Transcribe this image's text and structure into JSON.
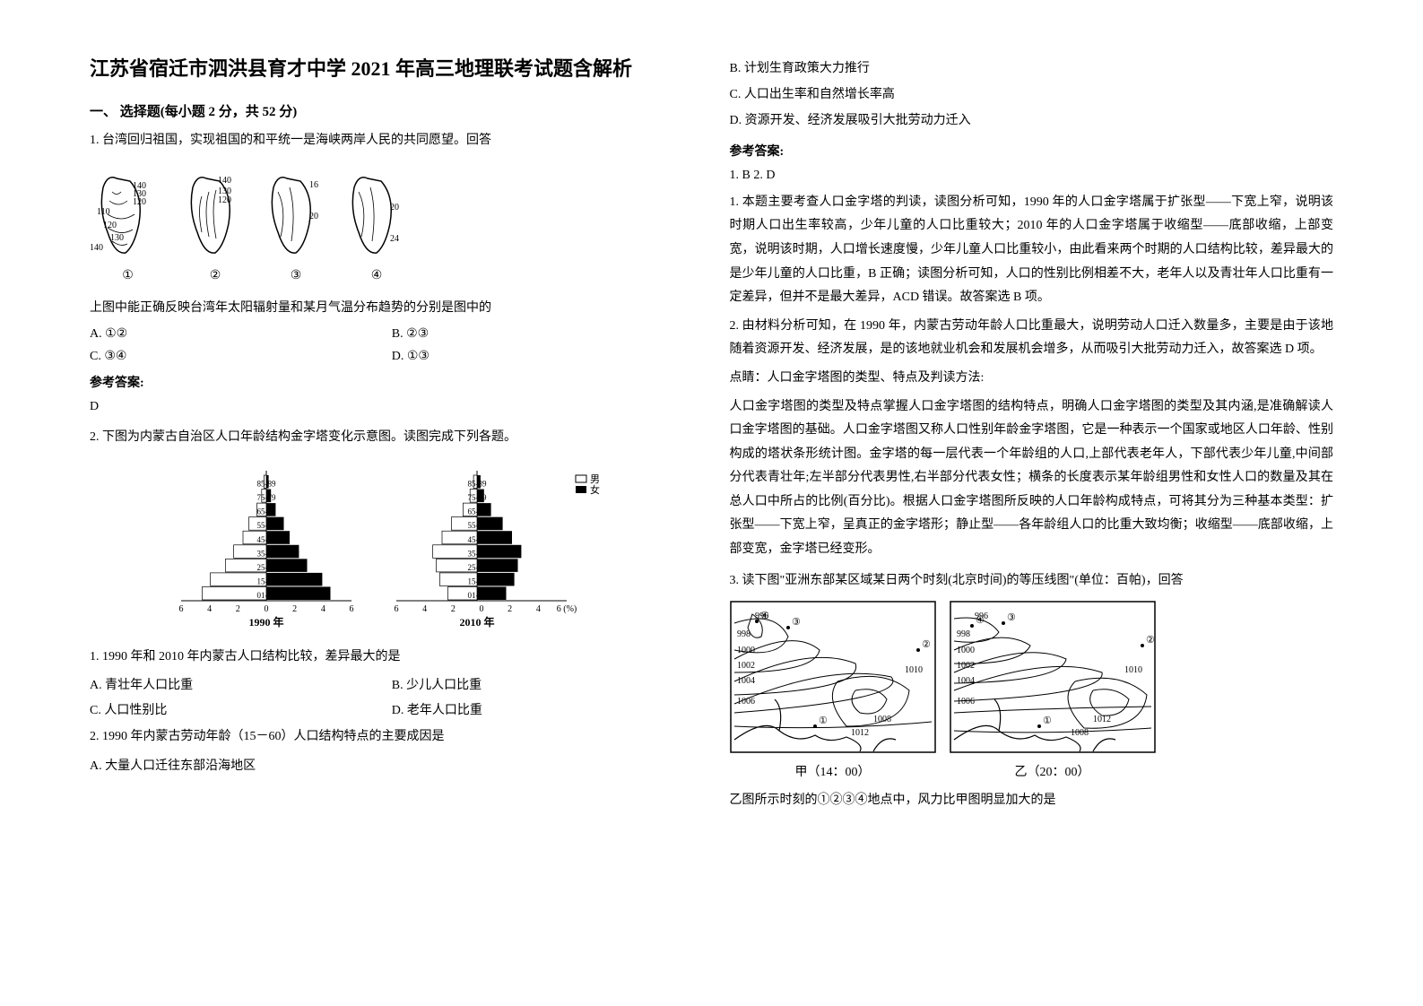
{
  "title": "江苏省宿迁市泗洪县育才中学 2021 年高三地理联考试题含解析",
  "section1_header": "一、 选择题(每小题 2 分，共 52 分)",
  "q1": {
    "stem": "1. 台湾回归祖国，实现祖国的和平统一是海峡两岸人民的共同愿望。回答",
    "taiwan_labels": [
      {
        "circle": "①",
        "vals": [
          "140",
          "130",
          "120",
          "110",
          "120",
          "130",
          "140"
        ]
      },
      {
        "circle": "②",
        "vals": [
          "140",
          "130",
          "120"
        ]
      },
      {
        "circle": "③",
        "vals": [
          "16",
          "20"
        ]
      },
      {
        "circle": "④",
        "vals": [
          "20",
          "24"
        ]
      }
    ],
    "sub": "上图中能正确反映台湾年太阳辐射量和某月气温分布趋势的分别是图中的",
    "opts": {
      "a": "A. ①②",
      "b": "B. ②③",
      "c": "C. ③④",
      "d": "D. ①③"
    }
  },
  "answer_label": "参考答案:",
  "q1_answer": "D",
  "q2": {
    "stem": "2. 下图为内蒙古自治区人口年龄结构金字塔变化示意图。读图完成下列各题。",
    "pyramid": {
      "age_labels": [
        "85-89",
        "75-79",
        "65-69",
        "55-59",
        "45-49",
        "35-39",
        "25-29",
        "15-19",
        "01-09"
      ],
      "x_ticks_left": [
        "6",
        "4",
        "2",
        "0",
        "2",
        "4",
        "6"
      ],
      "x_ticks_right": [
        "6",
        "4",
        "2",
        "0",
        "2",
        "4",
        "6 (%)"
      ],
      "year_left": "1990 年",
      "year_right": "2010 年",
      "legend": {
        "male": "男",
        "female": "女"
      },
      "left_bars": [
        0.2,
        0.4,
        0.8,
        1.5,
        2.0,
        2.8,
        3.5,
        4.8,
        5.5
      ],
      "right_bars": [
        0.3,
        0.6,
        1.2,
        2.2,
        3.0,
        3.8,
        3.5,
        3.2,
        2.5
      ]
    },
    "sub1": "1. 1990 年和 2010 年内蒙古人口结构比较，差异最大的是",
    "sub1_opts": {
      "a": "A. 青壮年人口比重",
      "b": "B. 少儿人口比重",
      "c": "C. 人口性别比",
      "d": "D. 老年人口比重"
    },
    "sub2": "2. 1990 年内蒙古劳动年龄（15－60）人口结构特点的主要成因是",
    "sub2_opts": {
      "a": "A. 大量人口迁往东部沿海地区",
      "b": "B. 计划生育政策大力推行",
      "c": "C. 人口出生率和自然增长率高",
      "d": "D. 资源开发、经济发展吸引大批劳动力迁入"
    }
  },
  "q2_answer": "1. B        2. D",
  "q2_explain1": "1. 本题主要考查人口金字塔的判读，读图分析可知，1990 年的人口金字塔属于扩张型——下宽上窄，说明该时期人口出生率较高，少年儿童的人口比重较大；2010 年的人口金字塔属于收缩型——底部收缩，上部变宽，说明该时期，人口增长速度慢，少年儿童人口比重较小，由此看来两个时期的人口结构比较，差异最大的是少年儿童的人口比重，B 正确；读图分析可知，人口的性别比例相差不大，老年人以及青壮年人口比重有一定差异，但并不是最大差异，ACD 错误。故答案选 B 项。",
  "q2_explain2": "2. 由材料分析可知，在 1990 年，内蒙古劳动年龄人口比重最大，说明劳动人口迁入数量多，主要是由于该地随着资源开发、经济发展，是的该地就业机会和发展机会增多，从而吸引大批劳动力迁入，故答案选 D 项。",
  "q2_note_label": "点睛：人口金字塔图的类型、特点及判读方法:",
  "q2_note": "人口金字塔图的类型及特点掌握人口金字塔图的结构特点，明确人口金字塔图的类型及其内涵,是准确解读人口金字塔图的基础。人口金字塔图又称人口性别年龄金字塔图，它是一种表示一个国家或地区人口年龄、性别构成的塔状条形统计图。金字塔的每一层代表一个年龄组的人口,上部代表老年人，下部代表少年儿童,中间部分代表青壮年;左半部分代表男性,右半部分代表女性；横条的长度表示某年龄组男性和女性人口的数量及其在总人口中所占的比例(百分比)。根据人口金字塔图所反映的人口年龄构成特点，可将其分为三种基本类型：扩张型——下宽上窄，呈真正的金字塔形；静止型——各年龄组人口的比重大致均衡；收缩型——底部收缩，上部变宽，金字塔已经变形。",
  "q3": {
    "stem": "3. 读下图\"亚洲东部某区域某日两个时刻(北京时间)的等压线图\"(单位：百帕)，回答",
    "isobar_left": {
      "vals": [
        "996",
        "998",
        "1000",
        "1002",
        "1004",
        "1006",
        "1012",
        "1010",
        "1008"
      ],
      "marks": [
        "③",
        "④",
        "①",
        "②"
      ]
    },
    "isobar_right": {
      "vals": [
        "996",
        "998",
        "1000",
        "1002",
        "1004",
        "1006",
        "1008",
        "1010",
        "1012"
      ],
      "marks": [
        "③",
        "④",
        "①",
        "②"
      ]
    },
    "caption_left": "甲（14：00）",
    "caption_right": "乙（20：00）",
    "sub": "乙图所示时刻的①②③④地点中，风力比甲图明显加大的是"
  }
}
